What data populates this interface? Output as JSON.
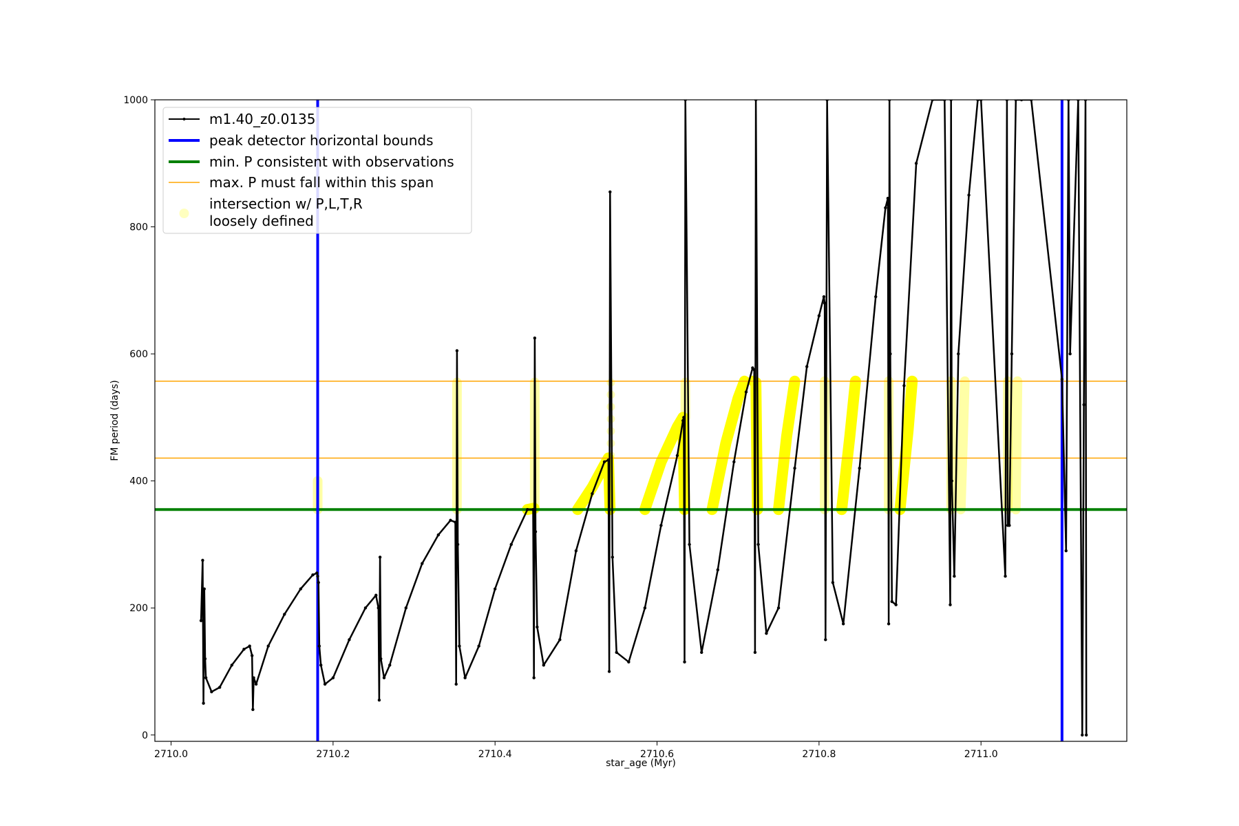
{
  "chart_data": {
    "type": "line",
    "xlabel": "star_age (Myr)",
    "ylabel": "FM period (days)",
    "xlim": [
      2709.98,
      2711.18
    ],
    "ylim": [
      -10,
      1000
    ],
    "x_ticks": [
      "2710.0",
      "2710.2",
      "2710.4",
      "2710.6",
      "2710.8",
      "2711.0"
    ],
    "x_tick_values": [
      2710.0,
      2710.2,
      2710.4,
      2710.6,
      2710.8,
      2711.0
    ],
    "y_ticks": [
      "0",
      "200",
      "400",
      "600",
      "800",
      "1000"
    ],
    "y_tick_values": [
      0,
      200,
      400,
      600,
      800,
      1000
    ],
    "grid": false,
    "legend_position": "upper-left",
    "legend": [
      {
        "label": "m1.40_z0.0135",
        "kind": "line-marker",
        "color": "#000000"
      },
      {
        "label": "peak detector horizontal bounds",
        "kind": "thick-line",
        "color": "#0000ff"
      },
      {
        "label": "min. P consistent with observations",
        "kind": "thick-line",
        "color": "#008000"
      },
      {
        "label": "max. P must fall within this span",
        "kind": "thin-line",
        "color": "#ffa500"
      },
      {
        "label": "intersection w/ P,L,T,R",
        "label2": "loosely defined",
        "kind": "dot",
        "color": "#ffff00"
      }
    ],
    "vertical_lines": [
      {
        "series": "peak detector horizontal bounds",
        "x": 2710.181,
        "color": "#0000ff"
      },
      {
        "series": "peak detector horizontal bounds",
        "x": 2711.1,
        "color": "#0000ff"
      }
    ],
    "horizontal_lines": [
      {
        "series": "min. P consistent with observations",
        "y": 355,
        "color": "#008000"
      },
      {
        "series": "max. P must fall within this span",
        "y": 436,
        "color": "#ffa500"
      },
      {
        "series": "max. P must fall within this span",
        "y": 557,
        "color": "#ffa500"
      }
    ],
    "series": [
      {
        "name": "m1.40_z0.0135",
        "color": "#000000",
        "x": [
          2710.037,
          2710.039,
          2710.04,
          2710.041,
          2710.042,
          2710.043,
          2710.05,
          2710.06,
          2710.075,
          2710.09,
          2710.097,
          2710.1,
          2710.101,
          2710.102,
          2710.105,
          2710.12,
          2710.14,
          2710.16,
          2710.175,
          2710.18,
          2710.181,
          2710.182,
          2710.183,
          2710.185,
          2710.19,
          2710.2,
          2710.22,
          2710.24,
          2710.253,
          2710.256,
          2710.257,
          2710.258,
          2710.259,
          2710.263,
          2710.27,
          2710.29,
          2710.31,
          2710.33,
          2710.345,
          2710.351,
          2710.352,
          2710.353,
          2710.354,
          2710.356,
          2710.363,
          2710.38,
          2710.4,
          2710.42,
          2710.44,
          2710.447,
          2710.448,
          2710.449,
          2710.45,
          2710.452,
          2710.46,
          2710.48,
          2710.5,
          2710.52,
          2710.535,
          2710.54,
          2710.541,
          2710.542,
          2710.545,
          2710.55,
          2710.565,
          2710.585,
          2710.605,
          2710.625,
          2710.632,
          2710.633,
          2710.634,
          2710.635,
          2710.64,
          2710.655,
          2710.675,
          2710.695,
          2710.71,
          2710.718,
          2710.72,
          2710.721,
          2710.722,
          2710.725,
          2710.735,
          2710.75,
          2710.77,
          2710.785,
          2710.8,
          2710.806,
          2710.807,
          2710.808,
          2710.81,
          2710.817,
          2710.83,
          2710.85,
          2710.87,
          2710.882,
          2710.885,
          2710.886,
          2710.887,
          2710.888,
          2710.89,
          2710.895,
          2710.905,
          2710.92,
          2710.94,
          2710.955,
          2710.962,
          2710.963,
          2710.964,
          2710.967,
          2710.972,
          2710.985,
          2710.996,
          2711.0,
          2711.03,
          2711.032,
          2711.033,
          2711.035,
          2711.038,
          2711.043,
          2711.05,
          2711.062,
          2711.1,
          2711.105,
          2711.108,
          2711.11,
          2711.12,
          2711.125,
          2711.127,
          2711.129,
          2711.13
        ],
        "y": [
          180,
          275,
          50,
          230,
          120,
          90,
          68,
          75,
          110,
          135,
          140,
          125,
          40,
          90,
          80,
          140,
          190,
          230,
          252,
          255,
          250,
          240,
          140,
          110,
          80,
          90,
          150,
          200,
          220,
          200,
          55,
          280,
          120,
          90,
          110,
          200,
          270,
          315,
          338,
          335,
          80,
          605,
          300,
          140,
          90,
          140,
          230,
          300,
          355,
          355,
          90,
          625,
          320,
          170,
          110,
          150,
          290,
          380,
          430,
          433,
          100,
          855,
          280,
          130,
          115,
          200,
          330,
          440,
          495,
          500,
          115,
          1000,
          300,
          130,
          260,
          430,
          540,
          578,
          575,
          130,
          1000,
          300,
          160,
          200,
          420,
          580,
          660,
          690,
          680,
          150,
          1000,
          240,
          175,
          420,
          690,
          830,
          845,
          175,
          1000,
          600,
          210,
          205,
          550,
          900,
          1000,
          1000,
          205,
          1000,
          400,
          250,
          600,
          850,
          1000,
          1000,
          250,
          1000,
          330,
          330,
          600,
          1000,
          1000,
          1000,
          560,
          290,
          1000,
          600,
          1000,
          0,
          520,
          1000,
          0
        ]
      },
      {
        "name": "intersection w/ P,L,T,R",
        "label2": "loosely defined",
        "color": "#ffff00",
        "segments": [
          {
            "x": [
              2710.181,
              2710.181
            ],
            "y": [
              355,
              400
            ],
            "style": "faint"
          },
          {
            "x": [
              2710.353,
              2710.353
            ],
            "y": [
              355,
              555
            ],
            "style": "faint"
          },
          {
            "x": [
              2710.44,
              2710.448
            ],
            "y": [
              355,
              357
            ],
            "style": "solid"
          },
          {
            "x": [
              2710.449,
              2710.449
            ],
            "y": [
              355,
              555
            ],
            "style": "faint"
          },
          {
            "x": [
              2710.502,
              2710.52,
              2710.535,
              2710.54,
              2710.542
            ],
            "y": [
              355,
              390,
              425,
              436,
              355
            ],
            "style": "solid"
          },
          {
            "x": [
              2710.543,
              2710.543
            ],
            "y": [
              440,
              555
            ],
            "style": "dots"
          },
          {
            "x": [
              2710.585,
              2710.605,
              2710.625,
              2710.632,
              2710.634
            ],
            "y": [
              355,
              430,
              485,
              500,
              355
            ],
            "style": "solid"
          },
          {
            "x": [
              2710.635,
              2710.635
            ],
            "y": [
              500,
              555
            ],
            "style": "faint"
          },
          {
            "x": [
              2710.668,
              2710.685,
              2710.7,
              2710.708
            ],
            "y": [
              355,
              460,
              530,
              557
            ],
            "style": "solid"
          },
          {
            "x": [
              2710.719,
              2710.722,
              2710.724
            ],
            "y": [
              557,
              555,
              355
            ],
            "style": "solid"
          },
          {
            "x": [
              2710.75,
              2710.76,
              2710.77
            ],
            "y": [
              355,
              470,
              557
            ],
            "style": "solid"
          },
          {
            "x": [
              2710.807,
              2710.807
            ],
            "y": [
              355,
              557
            ],
            "style": "faint"
          },
          {
            "x": [
              2710.828,
              2710.838,
              2710.845
            ],
            "y": [
              355,
              470,
              557
            ],
            "style": "solid"
          },
          {
            "x": [
              2710.886,
              2710.886
            ],
            "y": [
              355,
              557
            ],
            "style": "faint"
          },
          {
            "x": [
              2710.9,
              2710.91,
              2710.915
            ],
            "y": [
              355,
              480,
              557
            ],
            "style": "solid"
          },
          {
            "x": [
              2710.963,
              2710.963
            ],
            "y": [
              355,
              557
            ],
            "style": "faint"
          },
          {
            "x": [
              2710.975,
              2710.98
            ],
            "y": [
              355,
              557
            ],
            "style": "faint"
          },
          {
            "x": [
              2711.033,
              2711.033
            ],
            "y": [
              355,
              557
            ],
            "style": "faint"
          },
          {
            "x": [
              2711.043,
              2711.045
            ],
            "y": [
              355,
              557
            ],
            "style": "faint"
          }
        ]
      }
    ]
  }
}
